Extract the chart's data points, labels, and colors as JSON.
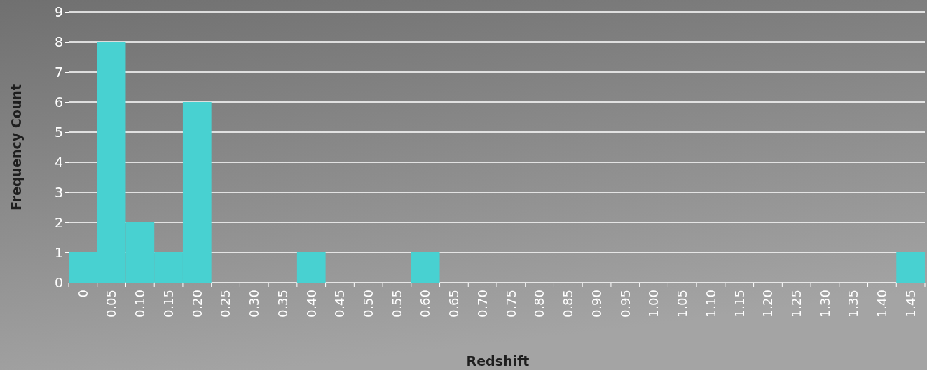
{
  "chart_data": {
    "type": "bar",
    "xlabel": "Redshift",
    "ylabel": "Frequency Count",
    "categories": [
      "0",
      "0.05",
      "0.10",
      "0.15",
      "0.20",
      "0.25",
      "0.30",
      "0.35",
      "0.40",
      "0.45",
      "0.50",
      "0.55",
      "0.60",
      "0.65",
      "0.70",
      "0.75",
      "0.80",
      "0.85",
      "0.90",
      "0.95",
      "1.00",
      "1.05",
      "1.10",
      "1.15",
      "1.20",
      "1.25",
      "1.30",
      "1.35",
      "1.40",
      "1.45"
    ],
    "values": [
      1,
      8,
      2,
      1,
      6,
      0,
      0,
      0,
      1,
      0,
      0,
      0,
      1,
      0,
      0,
      0,
      0,
      0,
      0,
      0,
      0,
      0,
      0,
      0,
      0,
      0,
      0,
      0,
      0,
      1
    ],
    "color": "#48d1d1",
    "ylim": [
      0,
      9
    ],
    "yticks": [
      0,
      1,
      2,
      3,
      4,
      5,
      6,
      7,
      8,
      9
    ],
    "grid": "y"
  }
}
